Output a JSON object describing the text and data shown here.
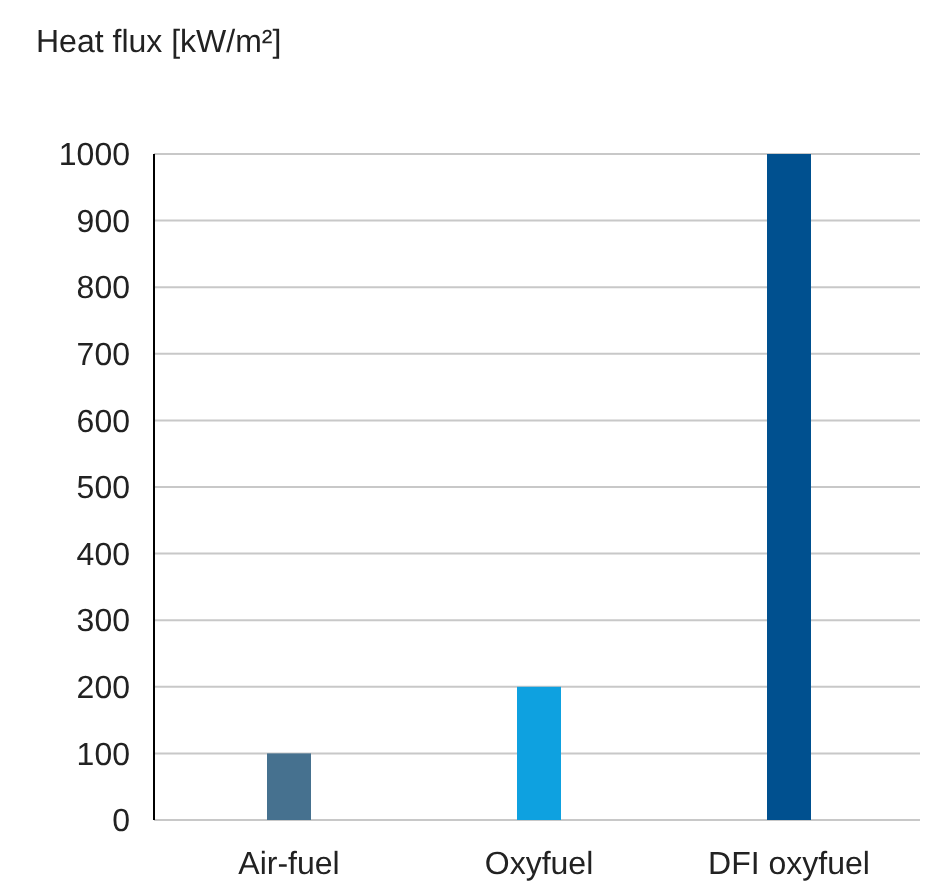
{
  "chart_data": {
    "type": "bar",
    "ylabel": "Heat flux [kW/m²]",
    "categories": [
      "Air-fuel",
      "Oxyfuel",
      "DFI oxyfuel"
    ],
    "values": [
      100,
      200,
      1000
    ],
    "colors": [
      "#46718f",
      "#0ea1e0",
      "#00508f"
    ],
    "ylim": [
      0,
      1000
    ],
    "yticks": [
      0,
      100,
      200,
      300,
      400,
      500,
      600,
      700,
      800,
      900,
      1000
    ],
    "grid": "y"
  }
}
